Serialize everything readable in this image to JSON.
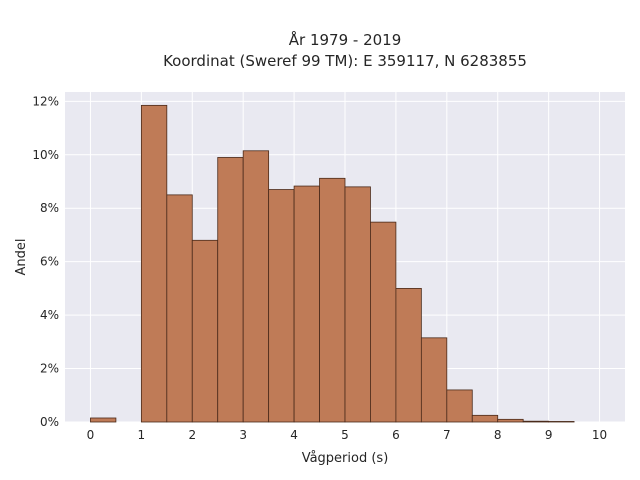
{
  "chart_data": {
    "type": "bar",
    "title_line1": "År 1979 - 2019",
    "title_line2": "Koordinat (Sweref 99 TM): E 359117, N 6283855",
    "xlabel": "Vågperiod (s)",
    "ylabel": "Andel",
    "bin_width": 0.5,
    "bins": [
      {
        "x0": 0.0,
        "value": 0.0015
      },
      {
        "x0": 0.5,
        "value": 0.0
      },
      {
        "x0": 1.0,
        "value": 0.1185
      },
      {
        "x0": 1.5,
        "value": 0.085
      },
      {
        "x0": 2.0,
        "value": 0.068
      },
      {
        "x0": 2.5,
        "value": 0.099
      },
      {
        "x0": 3.0,
        "value": 0.1015
      },
      {
        "x0": 3.5,
        "value": 0.087
      },
      {
        "x0": 4.0,
        "value": 0.0883
      },
      {
        "x0": 4.5,
        "value": 0.0912
      },
      {
        "x0": 5.0,
        "value": 0.088
      },
      {
        "x0": 5.5,
        "value": 0.0748
      },
      {
        "x0": 6.0,
        "value": 0.05
      },
      {
        "x0": 6.5,
        "value": 0.0315
      },
      {
        "x0": 7.0,
        "value": 0.012
      },
      {
        "x0": 7.5,
        "value": 0.0025
      },
      {
        "x0": 8.0,
        "value": 0.001
      },
      {
        "x0": 8.5,
        "value": 0.0003
      },
      {
        "x0": 9.0,
        "value": 0.0002
      }
    ],
    "xlim": [
      -0.5,
      10.5
    ],
    "ylim": [
      0,
      0.1235
    ],
    "xticks": [
      0,
      1,
      2,
      3,
      4,
      5,
      6,
      7,
      8,
      9,
      10
    ],
    "yticks": [
      0,
      0.02,
      0.04,
      0.06,
      0.08,
      0.1,
      0.12
    ],
    "ytick_labels": [
      "0%",
      "2%",
      "4%",
      "6%",
      "8%",
      "10%",
      "12%"
    ],
    "grid": true,
    "colors": {
      "background": "#e9e9f1",
      "grid": "#ffffff",
      "bar_fill": "#bf7b57",
      "bar_edge": "#4a2a1a"
    }
  }
}
